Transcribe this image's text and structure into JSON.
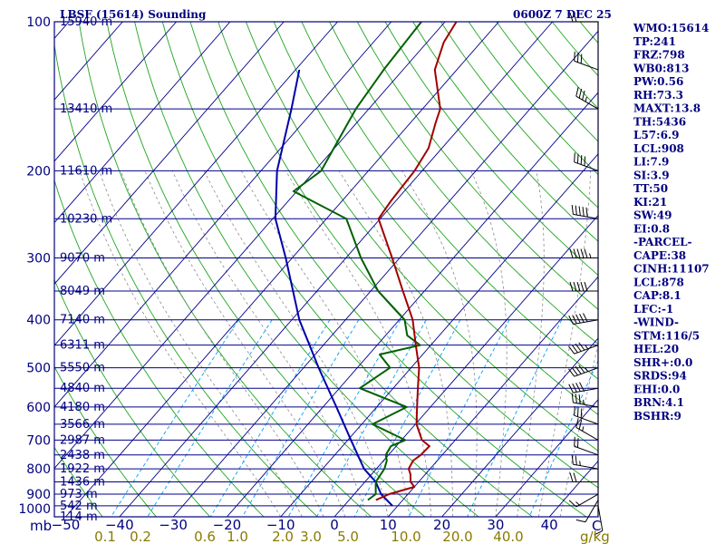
{
  "chart_data": {
    "type": "skew-t log-p sounding",
    "title": "LBSF (15614) Sounding",
    "datetime": "0600Z  7 DEC 25",
    "pressure_levels_mb": [
      100,
      200,
      300,
      400,
      500,
      600,
      700,
      800,
      900,
      1000
    ],
    "height_labels": [
      {
        "p": 100,
        "label": "15940 m"
      },
      {
        "p": 150,
        "label": "13410 m"
      },
      {
        "p": 200,
        "label": "11610 m"
      },
      {
        "p": 250,
        "label": "10230 m"
      },
      {
        "p": 300,
        "label": "9070 m"
      },
      {
        "p": 350,
        "label": "8049 m"
      },
      {
        "p": 400,
        "label": "7140 m"
      },
      {
        "p": 450,
        "label": "6311 m"
      },
      {
        "p": 500,
        "label": "5550 m"
      },
      {
        "p": 550,
        "label": "4840 m"
      },
      {
        "p": 600,
        "label": "4180 m"
      },
      {
        "p": 650,
        "label": "3566 m"
      },
      {
        "p": 700,
        "label": "2987 m"
      },
      {
        "p": 750,
        "label": "2438 m"
      },
      {
        "p": 800,
        "label": "1922 m"
      },
      {
        "p": 850,
        "label": "1436 m"
      },
      {
        "p": 900,
        "label": "973 m"
      },
      {
        "p": 950,
        "label": "542 m"
      },
      {
        "p": 1000,
        "label": "114 m"
      }
    ],
    "temperature_ticks_c": [
      -50,
      -40,
      -30,
      -20,
      -10,
      0,
      10,
      20,
      30,
      40
    ],
    "x_axis_unit": "C",
    "y_axis_unit": "mb",
    "mixing_ratio_labels": [
      "0.1",
      "0.2",
      "0.6",
      "1.0",
      "2.0",
      "3.0",
      "5.0",
      "10.0",
      "20.0",
      "40.0"
    ],
    "mixing_ratio_unit": "g/kg",
    "temperature_profile": [
      {
        "p": 925,
        "t": 5.0
      },
      {
        "p": 900,
        "t": 6.5
      },
      {
        "p": 870,
        "t": 10.0
      },
      {
        "p": 850,
        "t": 8.5
      },
      {
        "p": 820,
        "t": 7.2
      },
      {
        "p": 800,
        "t": 6.0
      },
      {
        "p": 770,
        "t": 5.5
      },
      {
        "p": 750,
        "t": 6.0
      },
      {
        "p": 720,
        "t": 6.2
      },
      {
        "p": 700,
        "t": 3.8
      },
      {
        "p": 650,
        "t": 0.2
      },
      {
        "p": 600,
        "t": -2.5
      },
      {
        "p": 550,
        "t": -5.4
      },
      {
        "p": 500,
        "t": -8.5
      },
      {
        "p": 450,
        "t": -12.8
      },
      {
        "p": 400,
        "t": -17.5
      },
      {
        "p": 350,
        "t": -24.0
      },
      {
        "p": 300,
        "t": -31.4
      },
      {
        "p": 250,
        "t": -40.3
      },
      {
        "p": 230,
        "t": -40.9
      },
      {
        "p": 200,
        "t": -41.4
      },
      {
        "p": 180,
        "t": -42.5
      },
      {
        "p": 160,
        "t": -45.3
      },
      {
        "p": 150,
        "t": -46.7
      },
      {
        "p": 125,
        "t": -54.1
      },
      {
        "p": 110,
        "t": -56.9
      },
      {
        "p": 100,
        "t": -57.9
      }
    ],
    "dewpoint_profile": [
      {
        "p": 925,
        "td": 3.5
      },
      {
        "p": 900,
        "td": 4.0
      },
      {
        "p": 850,
        "td": 2.0
      },
      {
        "p": 800,
        "td": 1.5
      },
      {
        "p": 770,
        "td": 0.6
      },
      {
        "p": 750,
        "td": -0.5
      },
      {
        "p": 720,
        "td": -1.0
      },
      {
        "p": 700,
        "td": 0.7
      },
      {
        "p": 650,
        "td": -8.0
      },
      {
        "p": 600,
        "td": -4.4
      },
      {
        "p": 550,
        "td": -16.2
      },
      {
        "p": 500,
        "td": -13.9
      },
      {
        "p": 470,
        "td": -18.0
      },
      {
        "p": 450,
        "td": -12.0
      },
      {
        "p": 430,
        "td": -16.0
      },
      {
        "p": 400,
        "td": -19.0
      },
      {
        "p": 350,
        "td": -28.6
      },
      {
        "p": 300,
        "td": -37.2
      },
      {
        "p": 250,
        "td": -46.3
      },
      {
        "p": 220,
        "td": -60.6
      },
      {
        "p": 200,
        "td": -58.8
      },
      {
        "p": 150,
        "td": -62.4
      },
      {
        "p": 125,
        "td": -63.6
      },
      {
        "p": 100,
        "td": -64.4
      }
    ],
    "parcel_profile": [
      {
        "p": 950,
        "t": 9.0
      },
      {
        "p": 900,
        "t": 5.0
      },
      {
        "p": 850,
        "t": 2.0
      },
      {
        "p": 800,
        "t": -2.3
      },
      {
        "p": 700,
        "t": -9.4
      },
      {
        "p": 600,
        "t": -17.5
      },
      {
        "p": 500,
        "t": -27.2
      },
      {
        "p": 400,
        "t": -38.6
      },
      {
        "p": 300,
        "t": -51.2
      },
      {
        "p": 250,
        "t": -59.5
      },
      {
        "p": 200,
        "t": -67.0
      },
      {
        "p": 150,
        "t": -74.4
      },
      {
        "p": 125,
        "t": -79.3
      }
    ],
    "wind_barbs": [
      {
        "p": 950,
        "dir": 170,
        "spd": 10
      },
      {
        "p": 925,
        "dir": 210,
        "spd": 10
      },
      {
        "p": 900,
        "dir": 240,
        "spd": 15
      },
      {
        "p": 850,
        "dir": 270,
        "spd": 20
      },
      {
        "p": 800,
        "dir": 280,
        "spd": 25
      },
      {
        "p": 750,
        "dir": 290,
        "spd": 20
      },
      {
        "p": 700,
        "dir": 300,
        "spd": 25
      },
      {
        "p": 650,
        "dir": 290,
        "spd": 30
      },
      {
        "p": 600,
        "dir": 280,
        "spd": 35
      },
      {
        "p": 550,
        "dir": 260,
        "spd": 40
      },
      {
        "p": 500,
        "dir": 250,
        "spd": 45
      },
      {
        "p": 450,
        "dir": 250,
        "spd": 45
      },
      {
        "p": 400,
        "dir": 260,
        "spd": 50
      },
      {
        "p": 350,
        "dir": 270,
        "spd": 50
      },
      {
        "p": 300,
        "dir": 270,
        "spd": 55
      },
      {
        "p": 250,
        "dir": 280,
        "spd": 50
      },
      {
        "p": 200,
        "dir": 290,
        "spd": 40
      },
      {
        "p": 150,
        "dir": 300,
        "spd": 35
      },
      {
        "p": 125,
        "dir": 290,
        "spd": 30
      },
      {
        "p": 100,
        "dir": 270,
        "spd": 20
      }
    ]
  },
  "indices": [
    "WMO:15614",
    "TP:241",
    "FRZ:798",
    "WB0:813",
    "PW:0.56",
    "RH:73.3",
    "MAXT:13.8",
    "TH:5436",
    "L57:6.9",
    "LCL:908",
    "LI:7.9",
    "SI:3.9",
    "TT:50",
    "KI:21",
    "SW:49",
    "EI:0.8",
    "-PARCEL-",
    "CAPE:38",
    "CINH:11107",
    "LCL:878",
    "CAP:8.1",
    "LFC:-1",
    "-WIND-",
    "STM:116/5",
    "HEL:20",
    "SHR+:0.0",
    "SRDS:94",
    "EHI:0.0",
    "BRN:4.1",
    "BSHR:9"
  ],
  "colors": {
    "frame": "#000080",
    "isobar": "#00008b",
    "isotherm": "#00008b",
    "dry_adiabat": "#1fa51f",
    "moist_adiabat": "#8c8c8c",
    "mixing_ratio": "#00a0ff",
    "temperature": "#a00000",
    "dewpoint": "#006000",
    "parcel": "#0000aa",
    "wind": "#000000",
    "mixing_text": "#8a7a00"
  }
}
